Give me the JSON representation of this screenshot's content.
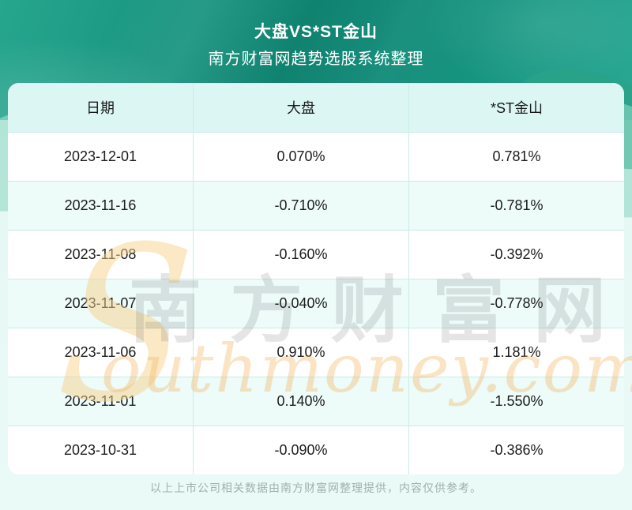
{
  "banner": {
    "title": "大盘VS*ST金山",
    "subtitle": "南方财富网趋势选股系统整理"
  },
  "table": {
    "headers": [
      "日期",
      "大盘",
      "*ST金山"
    ],
    "rows": [
      {
        "date": "2023-12-01",
        "market": "0.070%",
        "stock": "0.781%"
      },
      {
        "date": "2023-11-16",
        "market": "-0.710%",
        "stock": "-0.781%"
      },
      {
        "date": "2023-11-08",
        "market": "-0.160%",
        "stock": "-0.392%"
      },
      {
        "date": "2023-11-07",
        "market": "-0.040%",
        "stock": "-0.778%"
      },
      {
        "date": "2023-11-06",
        "market": "0.910%",
        "stock": "1.181%"
      },
      {
        "date": "2023-11-01",
        "market": "0.140%",
        "stock": "-1.550%"
      },
      {
        "date": "2023-10-31",
        "market": "-0.090%",
        "stock": "-0.386%"
      }
    ]
  },
  "watermark": {
    "swoosh": "S",
    "zh": "南方财富网",
    "en": "outhmoney.com"
  },
  "footer": {
    "note": "以上上市公司相关数据由南方财富网整理提供，内容仅供参考。"
  },
  "colors": {
    "banner_teal_dark": "#0d8875",
    "banner_teal_light": "#27a68e",
    "header_row_bg": "#dcf7f3",
    "shaded_row_bg": "#edfbf9",
    "cell_border": "#c9ece6",
    "page_bg": "#e6f8f4",
    "watermark_orange": "#f2b960",
    "footer_text": "#9fb1ae"
  },
  "chart_data": {
    "type": "table",
    "title": "大盘VS*ST金山",
    "subtitle": "南方财富网趋势选股系统整理",
    "columns": [
      "日期",
      "大盘",
      "*ST金山"
    ],
    "rows": [
      [
        "2023-12-01",
        "0.070%",
        "0.781%"
      ],
      [
        "2023-11-16",
        "-0.710%",
        "-0.781%"
      ],
      [
        "2023-11-08",
        "-0.160%",
        "-0.392%"
      ],
      [
        "2023-11-07",
        "-0.040%",
        "-0.778%"
      ],
      [
        "2023-11-06",
        "0.910%",
        "1.181%"
      ],
      [
        "2023-11-01",
        "0.140%",
        "-1.550%"
      ],
      [
        "2023-10-31",
        "-0.090%",
        "-0.386%"
      ]
    ],
    "series": [
      {
        "name": "大盘",
        "values": [
          0.07,
          -0.71,
          -0.16,
          -0.04,
          0.91,
          0.14,
          -0.09
        ]
      },
      {
        "name": "*ST金山",
        "values": [
          0.781,
          -0.781,
          -0.392,
          -0.778,
          1.181,
          -1.55,
          -0.386
        ]
      }
    ],
    "x": [
      "2023-12-01",
      "2023-11-16",
      "2023-11-08",
      "2023-11-07",
      "2023-11-06",
      "2023-11-01",
      "2023-10-31"
    ],
    "unit": "percent"
  }
}
